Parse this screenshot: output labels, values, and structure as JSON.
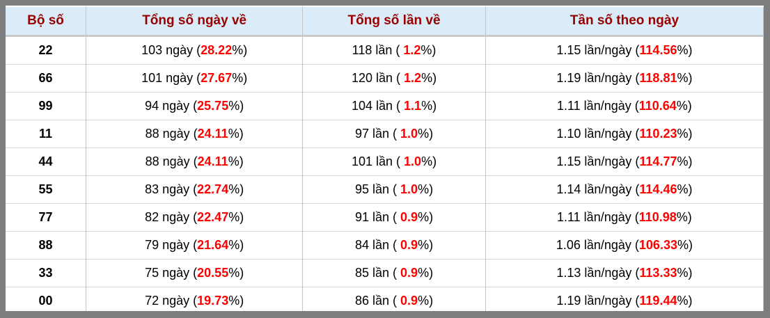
{
  "colors": {
    "frame": "#7d7d7d",
    "header_bg": "#d9ecf7",
    "header_text": "#990000",
    "highlight": "#ff0000",
    "body_text": "#000000",
    "col_border": "#c3c3c3",
    "row_border": "#d9d9d9",
    "header_border": "#c9c9c9"
  },
  "table": {
    "columns": [
      {
        "label": "Bộ số"
      },
      {
        "label": "Tổng số ngày về"
      },
      {
        "label": "Tổng số lần về"
      },
      {
        "label": "Tần số theo ngày"
      }
    ],
    "rows": [
      {
        "pair": "22",
        "days": {
          "pre": "103 ngày (",
          "highlight": "28.22",
          "post": "%)"
        },
        "times": {
          "pre": "118 lần ( ",
          "highlight": "1.2",
          "post": "%)"
        },
        "freq": {
          "pre": "1.15 lần/ngày (",
          "highlight": "114.56",
          "post": "%)"
        }
      },
      {
        "pair": "66",
        "days": {
          "pre": "101 ngày (",
          "highlight": "27.67",
          "post": "%)"
        },
        "times": {
          "pre": "120 lần ( ",
          "highlight": "1.2",
          "post": "%)"
        },
        "freq": {
          "pre": "1.19 lần/ngày (",
          "highlight": "118.81",
          "post": "%)"
        }
      },
      {
        "pair": "99",
        "days": {
          "pre": "94 ngày (",
          "highlight": "25.75",
          "post": "%)"
        },
        "times": {
          "pre": "104 lần ( ",
          "highlight": "1.1",
          "post": "%)"
        },
        "freq": {
          "pre": "1.11 lần/ngày (",
          "highlight": "110.64",
          "post": "%)"
        }
      },
      {
        "pair": "11",
        "days": {
          "pre": "88 ngày (",
          "highlight": "24.11",
          "post": "%)"
        },
        "times": {
          "pre": "97 lần ( ",
          "highlight": "1.0",
          "post": "%)"
        },
        "freq": {
          "pre": "1.10 lần/ngày (",
          "highlight": "110.23",
          "post": "%)"
        }
      },
      {
        "pair": "44",
        "days": {
          "pre": "88 ngày (",
          "highlight": "24.11",
          "post": "%)"
        },
        "times": {
          "pre": "101 lần ( ",
          "highlight": "1.0",
          "post": "%)"
        },
        "freq": {
          "pre": "1.15 lần/ngày (",
          "highlight": "114.77",
          "post": "%)"
        }
      },
      {
        "pair": "55",
        "days": {
          "pre": "83 ngày (",
          "highlight": "22.74",
          "post": "%)"
        },
        "times": {
          "pre": "95 lần ( ",
          "highlight": "1.0",
          "post": "%)"
        },
        "freq": {
          "pre": "1.14 lần/ngày (",
          "highlight": "114.46",
          "post": "%)"
        }
      },
      {
        "pair": "77",
        "days": {
          "pre": "82 ngày (",
          "highlight": "22.47",
          "post": "%)"
        },
        "times": {
          "pre": "91 lần ( ",
          "highlight": "0.9",
          "post": "%)"
        },
        "freq": {
          "pre": "1.11 lần/ngày (",
          "highlight": "110.98",
          "post": "%)"
        }
      },
      {
        "pair": "88",
        "days": {
          "pre": "79 ngày (",
          "highlight": "21.64",
          "post": "%)"
        },
        "times": {
          "pre": "84 lần ( ",
          "highlight": "0.9",
          "post": "%)"
        },
        "freq": {
          "pre": "1.06 lần/ngày (",
          "highlight": "106.33",
          "post": "%)"
        }
      },
      {
        "pair": "33",
        "days": {
          "pre": "75 ngày (",
          "highlight": "20.55",
          "post": "%)"
        },
        "times": {
          "pre": "85 lần ( ",
          "highlight": "0.9",
          "post": "%)"
        },
        "freq": {
          "pre": "1.13 lần/ngày (",
          "highlight": "113.33",
          "post": "%)"
        }
      },
      {
        "pair": "00",
        "days": {
          "pre": "72 ngày (",
          "highlight": "19.73",
          "post": "%)"
        },
        "times": {
          "pre": "86 lần ( ",
          "highlight": "0.9",
          "post": "%)"
        },
        "freq": {
          "pre": "1.19 lần/ngày (",
          "highlight": "119.44",
          "post": "%)"
        }
      }
    ]
  },
  "chart_data": {
    "type": "table",
    "title": "",
    "columns": [
      "Bộ số",
      "Tổng số ngày về",
      "Tổng số lần về",
      "Tần số theo ngày"
    ],
    "rows": [
      {
        "pair": "22",
        "days": 103,
        "days_pct": 28.22,
        "times": 118,
        "times_pct": 1.2,
        "freq_per_day": 1.15,
        "freq_pct": 114.56
      },
      {
        "pair": "66",
        "days": 101,
        "days_pct": 27.67,
        "times": 120,
        "times_pct": 1.2,
        "freq_per_day": 1.19,
        "freq_pct": 118.81
      },
      {
        "pair": "99",
        "days": 94,
        "days_pct": 25.75,
        "times": 104,
        "times_pct": 1.1,
        "freq_per_day": 1.11,
        "freq_pct": 110.64
      },
      {
        "pair": "11",
        "days": 88,
        "days_pct": 24.11,
        "times": 97,
        "times_pct": 1.0,
        "freq_per_day": 1.1,
        "freq_pct": 110.23
      },
      {
        "pair": "44",
        "days": 88,
        "days_pct": 24.11,
        "times": 101,
        "times_pct": 1.0,
        "freq_per_day": 1.15,
        "freq_pct": 114.77
      },
      {
        "pair": "55",
        "days": 83,
        "days_pct": 22.74,
        "times": 95,
        "times_pct": 1.0,
        "freq_per_day": 1.14,
        "freq_pct": 114.46
      },
      {
        "pair": "77",
        "days": 82,
        "days_pct": 22.47,
        "times": 91,
        "times_pct": 0.9,
        "freq_per_day": 1.11,
        "freq_pct": 110.98
      },
      {
        "pair": "88",
        "days": 79,
        "days_pct": 21.64,
        "times": 84,
        "times_pct": 0.9,
        "freq_per_day": 1.06,
        "freq_pct": 106.33
      },
      {
        "pair": "33",
        "days": 75,
        "days_pct": 20.55,
        "times": 85,
        "times_pct": 0.9,
        "freq_per_day": 1.13,
        "freq_pct": 113.33
      },
      {
        "pair": "00",
        "days": 72,
        "days_pct": 19.73,
        "times": 86,
        "times_pct": 0.9,
        "freq_per_day": 1.19,
        "freq_pct": 119.44
      }
    ]
  }
}
